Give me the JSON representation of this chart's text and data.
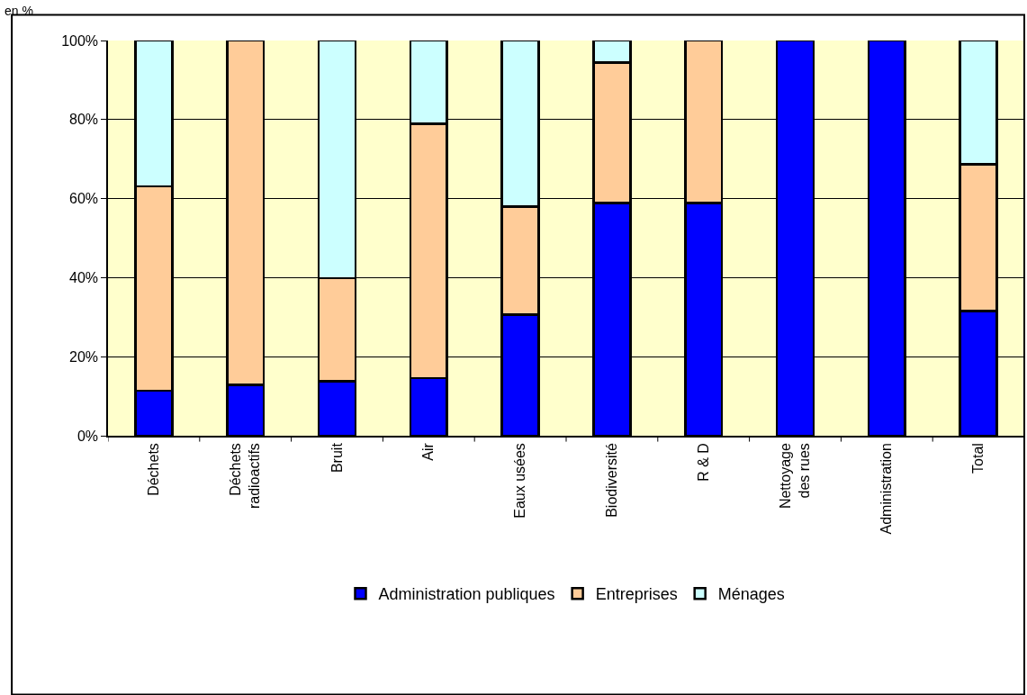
{
  "chart_data": {
    "type": "bar",
    "stacked": true,
    "categories": [
      "Déchets",
      "Déchets radioactifs",
      "Bruit",
      "Air",
      "Eaux usées",
      "Biodiversité",
      "R & D",
      "Nettoyage des rues",
      "Administration",
      "Total"
    ],
    "series": [
      {
        "name": "Administration publiques",
        "color": "#0000ff",
        "values": [
          11.4,
          12.9,
          13.8,
          14.6,
          30.6,
          58.9,
          58.9,
          100,
          100,
          31.5
        ]
      },
      {
        "name": "Entreprises",
        "color": "#ffcc99",
        "values": [
          51.7,
          87.1,
          26.1,
          64.3,
          27.4,
          35.5,
          41.1,
          null,
          null,
          37.2
        ]
      },
      {
        "name": "Ménages",
        "color": "#ccffff",
        "values": [
          36.9,
          null,
          60.1,
          21.1,
          42.0,
          5.6,
          null,
          null,
          null,
          31.3
        ]
      }
    ],
    "ylim": [
      0,
      100
    ],
    "yticks": [
      {
        "value": 0,
        "label": "0%"
      },
      {
        "value": 20,
        "label": "20%"
      },
      {
        "value": 40,
        "label": "40%"
      },
      {
        "value": 60,
        "label": "60%"
      },
      {
        "value": 80,
        "label": "80%"
      },
      {
        "value": 100,
        "label": "100%"
      }
    ],
    "grid": "y",
    "legend": "bottom",
    "annotations": [
      "en %"
    ]
  }
}
